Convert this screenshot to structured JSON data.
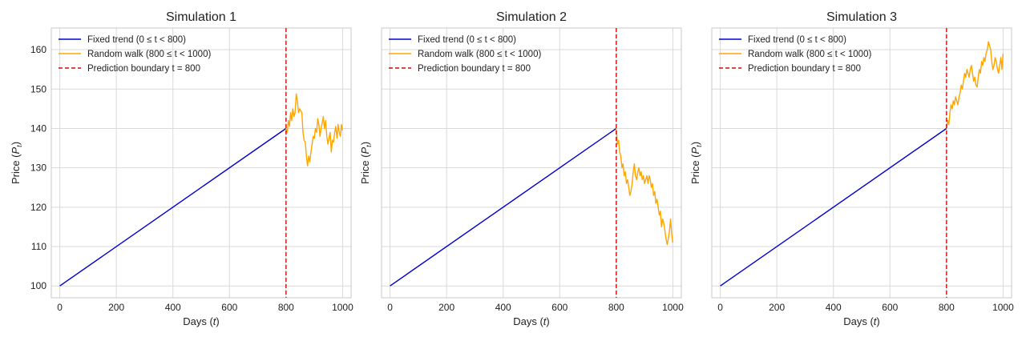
{
  "figure": {
    "background": "#ffffff"
  },
  "colors": {
    "trend": "#0000cd",
    "walk": "#ffa500",
    "boundary": "#e00000",
    "grid": "#d9d9d9",
    "frame": "#c8c8c8"
  },
  "chart_data": [
    {
      "type": "line",
      "title": "Simulation 1",
      "xlabel": "Days (t)",
      "ylabel": "Price (P_t)",
      "xlim": [
        -30,
        1030
      ],
      "ylim": [
        97,
        165.5
      ],
      "xticks": [
        0,
        200,
        400,
        600,
        800,
        1000
      ],
      "yticks": [
        100,
        110,
        120,
        130,
        140,
        150,
        160
      ],
      "show_ytick_labels": true,
      "grid": true,
      "legend_position": "top-left",
      "legend": [
        "Fixed trend (0 ≤ t < 800)",
        "Random walk (800 ≤ t < 1000)",
        "Prediction boundary t = 800"
      ],
      "boundary_x": 800,
      "series": [
        {
          "name": "Fixed trend (0 ≤ t < 800)",
          "x": [
            0,
            800
          ],
          "y": [
            100,
            140
          ]
        },
        {
          "name": "Random walk (800 ≤ t < 1000)",
          "x": [
            800,
            804,
            808,
            812,
            816,
            820,
            824,
            828,
            832,
            836,
            840,
            844,
            848,
            852,
            856,
            860,
            864,
            868,
            872,
            876,
            880,
            884,
            888,
            892,
            896,
            900,
            904,
            908,
            912,
            916,
            920,
            924,
            928,
            932,
            936,
            940,
            944,
            948,
            952,
            956,
            960,
            964,
            968,
            972,
            976,
            980,
            984,
            988,
            992,
            996,
            1000
          ],
          "y": [
            140,
            139,
            142,
            140.5,
            144,
            142,
            145,
            143,
            144,
            148.8,
            147,
            144,
            145,
            144.5,
            144,
            139,
            137,
            136.5,
            133,
            130.5,
            133,
            131.5,
            134,
            136,
            138,
            137.5,
            140,
            139,
            142.5,
            141,
            138,
            140,
            141.5,
            143,
            140,
            142,
            138,
            136,
            137.5,
            139,
            134,
            137,
            136.5,
            139,
            140.5,
            137.5,
            141,
            139,
            138,
            141,
            139.5
          ]
        }
      ]
    },
    {
      "type": "line",
      "title": "Simulation 2",
      "xlabel": "Days (t)",
      "ylabel": "Price (P_t)",
      "xlim": [
        -30,
        1030
      ],
      "ylim": [
        97,
        165.5
      ],
      "xticks": [
        0,
        200,
        400,
        600,
        800,
        1000
      ],
      "yticks": [
        100,
        110,
        120,
        130,
        140,
        150,
        160
      ],
      "show_ytick_labels": false,
      "grid": true,
      "legend_position": "top-left",
      "legend": [
        "Fixed trend (0 ≤ t < 800)",
        "Random walk (800 ≤ t < 1000)",
        "Prediction boundary t = 800"
      ],
      "boundary_x": 800,
      "series": [
        {
          "name": "Fixed trend (0 ≤ t < 800)",
          "x": [
            0,
            800
          ],
          "y": [
            100,
            140
          ]
        },
        {
          "name": "Random walk (800 ≤ t < 1000)",
          "x": [
            800,
            804,
            808,
            812,
            816,
            820,
            824,
            828,
            832,
            836,
            840,
            844,
            848,
            852,
            856,
            860,
            864,
            868,
            872,
            876,
            880,
            884,
            888,
            892,
            896,
            900,
            904,
            908,
            912,
            916,
            920,
            924,
            928,
            932,
            936,
            940,
            944,
            948,
            952,
            956,
            960,
            964,
            968,
            972,
            976,
            980,
            984,
            988,
            992,
            996,
            1000
          ],
          "y": [
            140,
            136,
            137,
            134,
            133,
            130,
            131,
            128,
            129,
            126,
            127,
            125,
            123,
            124,
            126,
            129,
            131,
            128,
            127,
            129,
            130,
            128,
            129,
            127,
            128,
            126,
            127,
            128,
            126,
            128,
            127,
            125,
            126,
            123,
            124,
            121,
            122,
            120,
            118,
            119,
            115,
            117,
            116,
            114,
            112,
            110.5,
            112,
            114,
            117,
            113,
            111
          ]
        }
      ]
    },
    {
      "type": "line",
      "title": "Simulation 3",
      "xlabel": "Days (t)",
      "ylabel": "Price (P_t)",
      "xlim": [
        -30,
        1030
      ],
      "ylim": [
        97,
        165.5
      ],
      "xticks": [
        0,
        200,
        400,
        600,
        800,
        1000
      ],
      "yticks": [
        100,
        110,
        120,
        130,
        140,
        150,
        160
      ],
      "show_ytick_labels": false,
      "grid": true,
      "legend_position": "top-left",
      "legend": [
        "Fixed trend (0 ≤ t < 800)",
        "Random walk (800 ≤ t < 1000)",
        "Prediction boundary t = 800"
      ],
      "boundary_x": 800,
      "series": [
        {
          "name": "Fixed trend (0 ≤ t < 800)",
          "x": [
            0,
            800
          ],
          "y": [
            100,
            140
          ]
        },
        {
          "name": "Random walk (800 ≤ t < 1000)",
          "x": [
            800,
            804,
            808,
            812,
            816,
            820,
            824,
            828,
            832,
            836,
            840,
            844,
            848,
            852,
            856,
            860,
            864,
            868,
            872,
            876,
            880,
            884,
            888,
            892,
            896,
            900,
            904,
            908,
            912,
            916,
            920,
            924,
            928,
            932,
            936,
            940,
            944,
            948,
            952,
            956,
            960,
            964,
            968,
            972,
            976,
            980,
            984,
            988,
            992,
            996,
            1000
          ],
          "y": [
            140,
            142,
            141,
            144,
            146,
            145,
            147,
            146,
            148,
            147,
            146,
            148,
            149,
            151,
            150,
            152,
            154,
            153,
            155,
            154,
            153,
            155,
            156,
            154,
            152,
            153,
            151,
            150.5,
            153,
            155,
            154,
            157,
            156,
            158,
            157,
            159,
            160,
            162,
            161,
            160,
            157,
            155,
            156,
            158,
            157,
            155,
            154,
            156,
            158,
            155,
            159
          ]
        }
      ]
    }
  ]
}
